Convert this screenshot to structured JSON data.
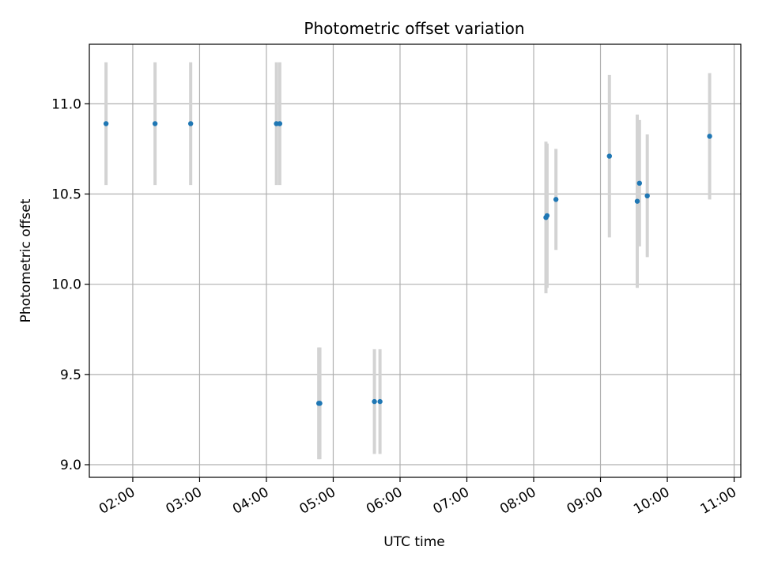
{
  "chart_data": {
    "type": "scatter",
    "title": "Photometric offset variation",
    "xlabel": "UTC time",
    "ylabel": "Photometric offset",
    "grid": true,
    "x_ticks": [
      "02:00",
      "03:00",
      "04:00",
      "05:00",
      "06:00",
      "07:00",
      "08:00",
      "09:00",
      "10:00",
      "11:00"
    ],
    "y_ticks": [
      "9.0",
      "9.5",
      "10.0",
      "10.5",
      "11.0"
    ],
    "xlim": [
      "01:21",
      "11:06"
    ],
    "ylim": [
      8.93,
      11.33
    ],
    "colors": {
      "point": "#1f77b4",
      "errorbar": "#d3d3d3",
      "grid": "#b0b0b0"
    },
    "points": [
      {
        "x": "01:36",
        "y": 10.89,
        "yerr": 0.34
      },
      {
        "x": "02:20",
        "y": 10.89,
        "yerr": 0.34
      },
      {
        "x": "02:52",
        "y": 10.89,
        "yerr": 0.34
      },
      {
        "x": "04:09",
        "y": 10.89,
        "yerr": 0.34
      },
      {
        "x": "04:12",
        "y": 10.89,
        "yerr": 0.34
      },
      {
        "x": "04:47",
        "y": 9.34,
        "yerr": 0.31
      },
      {
        "x": "04:48",
        "y": 9.34,
        "yerr": 0.31
      },
      {
        "x": "05:37",
        "y": 9.35,
        "yerr": 0.29
      },
      {
        "x": "05:42",
        "y": 9.35,
        "yerr": 0.29
      },
      {
        "x": "08:11",
        "y": 10.37,
        "yerr": 0.42
      },
      {
        "x": "08:12",
        "y": 10.38,
        "yerr": 0.4
      },
      {
        "x": "08:20",
        "y": 10.47,
        "yerr": 0.28
      },
      {
        "x": "09:08",
        "y": 10.71,
        "yerr": 0.45
      },
      {
        "x": "09:33",
        "y": 10.46,
        "yerr": 0.48
      },
      {
        "x": "09:35",
        "y": 10.56,
        "yerr": 0.35
      },
      {
        "x": "09:42",
        "y": 10.49,
        "yerr": 0.34
      },
      {
        "x": "10:38",
        "y": 10.82,
        "yerr": 0.35
      }
    ]
  }
}
